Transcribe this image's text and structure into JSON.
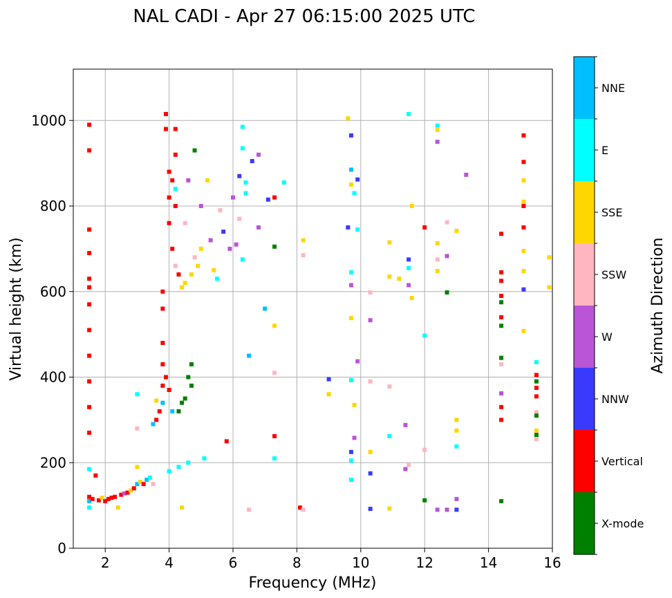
{
  "chart_data": {
    "type": "scatter",
    "title": "NAL CADI - Apr 27 06:15:00 2025 UTC",
    "xlabel": "Frequency (MHz)",
    "ylabel": "Virtual height (km)",
    "xlim": [
      1.0,
      16.0
    ],
    "ylim": [
      0,
      1120
    ],
    "xticks": [
      2,
      4,
      6,
      8,
      10,
      12,
      14,
      16
    ],
    "yticks": [
      0,
      200,
      400,
      600,
      800,
      1000
    ],
    "grid": true,
    "colorbar": {
      "label": "Azimuth Direction",
      "categories": [
        {
          "name": "X-mode",
          "color": "#008000"
        },
        {
          "name": "Vertical",
          "color": "#ff0000"
        },
        {
          "name": "NNW",
          "color": "#3a3aff"
        },
        {
          "name": "W",
          "color": "#b955d6"
        },
        {
          "name": "SSW",
          "color": "#ffb6c1"
        },
        {
          "name": "SSE",
          "color": "#ffd700"
        },
        {
          "name": "E",
          "color": "#00ffff"
        },
        {
          "name": "NNE",
          "color": "#00bfff"
        }
      ]
    },
    "points": [
      {
        "f": 1.5,
        "h": 990,
        "dir": "Vertical"
      },
      {
        "f": 1.5,
        "h": 930,
        "dir": "Vertical"
      },
      {
        "f": 1.5,
        "h": 745,
        "dir": "Vertical"
      },
      {
        "f": 1.5,
        "h": 690,
        "dir": "Vertical"
      },
      {
        "f": 1.5,
        "h": 630,
        "dir": "Vertical"
      },
      {
        "f": 1.5,
        "h": 610,
        "dir": "Vertical"
      },
      {
        "f": 1.5,
        "h": 570,
        "dir": "Vertical"
      },
      {
        "f": 1.5,
        "h": 510,
        "dir": "Vertical"
      },
      {
        "f": 1.5,
        "h": 450,
        "dir": "Vertical"
      },
      {
        "f": 1.5,
        "h": 390,
        "dir": "Vertical"
      },
      {
        "f": 1.5,
        "h": 330,
        "dir": "Vertical"
      },
      {
        "f": 1.5,
        "h": 270,
        "dir": "Vertical"
      },
      {
        "f": 1.5,
        "h": 185,
        "dir": "E"
      },
      {
        "f": 1.5,
        "h": 120,
        "dir": "Vertical"
      },
      {
        "f": 1.5,
        "h": 110,
        "dir": "NNE"
      },
      {
        "f": 1.5,
        "h": 95,
        "dir": "E"
      },
      {
        "f": 1.6,
        "h": 115,
        "dir": "Vertical"
      },
      {
        "f": 1.7,
        "h": 170,
        "dir": "Vertical"
      },
      {
        "f": 1.8,
        "h": 112,
        "dir": "Vertical"
      },
      {
        "f": 1.9,
        "h": 118,
        "dir": "SSE"
      },
      {
        "f": 2.0,
        "h": 110,
        "dir": "Vertical"
      },
      {
        "f": 2.1,
        "h": 115,
        "dir": "Vertical"
      },
      {
        "f": 2.2,
        "h": 118,
        "dir": "Vertical"
      },
      {
        "f": 2.3,
        "h": 120,
        "dir": "Vertical"
      },
      {
        "f": 2.4,
        "h": 95,
        "dir": "SSE"
      },
      {
        "f": 2.5,
        "h": 125,
        "dir": "Vertical"
      },
      {
        "f": 2.6,
        "h": 128,
        "dir": "W"
      },
      {
        "f": 2.7,
        "h": 130,
        "dir": "Vertical"
      },
      {
        "f": 2.8,
        "h": 135,
        "dir": "SSE"
      },
      {
        "f": 2.9,
        "h": 140,
        "dir": "Vertical"
      },
      {
        "f": 3.0,
        "h": 150,
        "dir": "NNE"
      },
      {
        "f": 3.0,
        "h": 190,
        "dir": "SSE"
      },
      {
        "f": 3.0,
        "h": 280,
        "dir": "SSW"
      },
      {
        "f": 3.0,
        "h": 360,
        "dir": "E"
      },
      {
        "f": 3.1,
        "h": 155,
        "dir": "SSE"
      },
      {
        "f": 3.2,
        "h": 150,
        "dir": "Vertical"
      },
      {
        "f": 3.3,
        "h": 160,
        "dir": "NNE"
      },
      {
        "f": 3.4,
        "h": 165,
        "dir": "E"
      },
      {
        "f": 3.5,
        "h": 150,
        "dir": "SSW"
      },
      {
        "f": 3.5,
        "h": 290,
        "dir": "NNE"
      },
      {
        "f": 3.6,
        "h": 300,
        "dir": "Vertical"
      },
      {
        "f": 3.6,
        "h": 345,
        "dir": "SSE"
      },
      {
        "f": 3.7,
        "h": 320,
        "dir": "Vertical"
      },
      {
        "f": 3.8,
        "h": 380,
        "dir": "Vertical"
      },
      {
        "f": 3.8,
        "h": 340,
        "dir": "NNE"
      },
      {
        "f": 3.8,
        "h": 430,
        "dir": "Vertical"
      },
      {
        "f": 3.8,
        "h": 480,
        "dir": "Vertical"
      },
      {
        "f": 3.8,
        "h": 560,
        "dir": "Vertical"
      },
      {
        "f": 3.8,
        "h": 600,
        "dir": "Vertical"
      },
      {
        "f": 3.9,
        "h": 400,
        "dir": "Vertical"
      },
      {
        "f": 3.9,
        "h": 1015,
        "dir": "Vertical"
      },
      {
        "f": 3.9,
        "h": 980,
        "dir": "Vertical"
      },
      {
        "f": 4.0,
        "h": 880,
        "dir": "Vertical"
      },
      {
        "f": 4.0,
        "h": 820,
        "dir": "Vertical"
      },
      {
        "f": 4.0,
        "h": 760,
        "dir": "Vertical"
      },
      {
        "f": 4.0,
        "h": 370,
        "dir": "Vertical"
      },
      {
        "f": 4.0,
        "h": 180,
        "dir": "E"
      },
      {
        "f": 4.1,
        "h": 860,
        "dir": "Vertical"
      },
      {
        "f": 4.1,
        "h": 700,
        "dir": "Vertical"
      },
      {
        "f": 4.1,
        "h": 320,
        "dir": "NNE"
      },
      {
        "f": 4.2,
        "h": 980,
        "dir": "Vertical"
      },
      {
        "f": 4.2,
        "h": 920,
        "dir": "Vertical"
      },
      {
        "f": 4.2,
        "h": 840,
        "dir": "E"
      },
      {
        "f": 4.2,
        "h": 800,
        "dir": "Vertical"
      },
      {
        "f": 4.2,
        "h": 660,
        "dir": "SSW"
      },
      {
        "f": 4.3,
        "h": 640,
        "dir": "Vertical"
      },
      {
        "f": 4.3,
        "h": 320,
        "dir": "X-mode"
      },
      {
        "f": 4.3,
        "h": 190,
        "dir": "E"
      },
      {
        "f": 4.4,
        "h": 610,
        "dir": "SSE"
      },
      {
        "f": 4.4,
        "h": 340,
        "dir": "X-mode"
      },
      {
        "f": 4.4,
        "h": 95,
        "dir": "SSE"
      },
      {
        "f": 4.5,
        "h": 760,
        "dir": "SSW"
      },
      {
        "f": 4.5,
        "h": 620,
        "dir": "SSE"
      },
      {
        "f": 4.5,
        "h": 350,
        "dir": "X-mode"
      },
      {
        "f": 4.6,
        "h": 400,
        "dir": "X-mode"
      },
      {
        "f": 4.6,
        "h": 860,
        "dir": "W"
      },
      {
        "f": 4.6,
        "h": 200,
        "dir": "E"
      },
      {
        "f": 4.7,
        "h": 640,
        "dir": "SSE"
      },
      {
        "f": 4.7,
        "h": 380,
        "dir": "X-mode"
      },
      {
        "f": 4.7,
        "h": 430,
        "dir": "X-mode"
      },
      {
        "f": 4.8,
        "h": 930,
        "dir": "X-mode"
      },
      {
        "f": 4.8,
        "h": 680,
        "dir": "SSW"
      },
      {
        "f": 4.9,
        "h": 660,
        "dir": "SSE"
      },
      {
        "f": 5.0,
        "h": 700,
        "dir": "SSE"
      },
      {
        "f": 5.0,
        "h": 800,
        "dir": "W"
      },
      {
        "f": 5.1,
        "h": 210,
        "dir": "E"
      },
      {
        "f": 5.2,
        "h": 860,
        "dir": "SSE"
      },
      {
        "f": 5.3,
        "h": 720,
        "dir": "W"
      },
      {
        "f": 5.4,
        "h": 650,
        "dir": "SSE"
      },
      {
        "f": 5.5,
        "h": 630,
        "dir": "E"
      },
      {
        "f": 5.6,
        "h": 790,
        "dir": "SSW"
      },
      {
        "f": 5.7,
        "h": 740,
        "dir": "NNW"
      },
      {
        "f": 5.8,
        "h": 250,
        "dir": "Vertical"
      },
      {
        "f": 5.9,
        "h": 700,
        "dir": "W"
      },
      {
        "f": 6.0,
        "h": 820,
        "dir": "W"
      },
      {
        "f": 6.1,
        "h": 710,
        "dir": "W"
      },
      {
        "f": 6.2,
        "h": 770,
        "dir": "SSW"
      },
      {
        "f": 6.2,
        "h": 870,
        "dir": "NNW"
      },
      {
        "f": 6.3,
        "h": 985,
        "dir": "E"
      },
      {
        "f": 6.3,
        "h": 935,
        "dir": "E"
      },
      {
        "f": 6.3,
        "h": 675,
        "dir": "E"
      },
      {
        "f": 6.4,
        "h": 855,
        "dir": "E"
      },
      {
        "f": 6.4,
        "h": 830,
        "dir": "E"
      },
      {
        "f": 6.5,
        "h": 450,
        "dir": "NNE"
      },
      {
        "f": 6.5,
        "h": 90,
        "dir": "SSW"
      },
      {
        "f": 6.6,
        "h": 905,
        "dir": "NNW"
      },
      {
        "f": 6.8,
        "h": 920,
        "dir": "W"
      },
      {
        "f": 6.8,
        "h": 750,
        "dir": "W"
      },
      {
        "f": 7.0,
        "h": 560,
        "dir": "NNE"
      },
      {
        "f": 7.1,
        "h": 815,
        "dir": "NNW"
      },
      {
        "f": 7.3,
        "h": 520,
        "dir": "SSE"
      },
      {
        "f": 7.3,
        "h": 410,
        "dir": "SSW"
      },
      {
        "f": 7.3,
        "h": 820,
        "dir": "Vertical"
      },
      {
        "f": 7.3,
        "h": 705,
        "dir": "X-mode"
      },
      {
        "f": 7.3,
        "h": 262,
        "dir": "Vertical"
      },
      {
        "f": 7.3,
        "h": 210,
        "dir": "E"
      },
      {
        "f": 7.6,
        "h": 855,
        "dir": "E"
      },
      {
        "f": 8.1,
        "h": 95,
        "dir": "Vertical"
      },
      {
        "f": 8.2,
        "h": 720,
        "dir": "SSE"
      },
      {
        "f": 8.2,
        "h": 685,
        "dir": "SSW"
      },
      {
        "f": 8.2,
        "h": 90,
        "dir": "SSW"
      },
      {
        "f": 9.0,
        "h": 395,
        "dir": "NNW"
      },
      {
        "f": 9.0,
        "h": 360,
        "dir": "SSE"
      },
      {
        "f": 9.6,
        "h": 1005,
        "dir": "SSE"
      },
      {
        "f": 9.6,
        "h": 750,
        "dir": "NNW"
      },
      {
        "f": 9.7,
        "h": 965,
        "dir": "NNW"
      },
      {
        "f": 9.7,
        "h": 885,
        "dir": "NNE"
      },
      {
        "f": 9.7,
        "h": 850,
        "dir": "SSE"
      },
      {
        "f": 9.7,
        "h": 645,
        "dir": "E"
      },
      {
        "f": 9.7,
        "h": 615,
        "dir": "W"
      },
      {
        "f": 9.7,
        "h": 538,
        "dir": "SSE"
      },
      {
        "f": 9.7,
        "h": 393,
        "dir": "E"
      },
      {
        "f": 9.7,
        "h": 225,
        "dir": "NNW"
      },
      {
        "f": 9.7,
        "h": 205,
        "dir": "E"
      },
      {
        "f": 9.7,
        "h": 160,
        "dir": "E"
      },
      {
        "f": 9.8,
        "h": 335,
        "dir": "SSE"
      },
      {
        "f": 9.8,
        "h": 258,
        "dir": "W"
      },
      {
        "f": 9.8,
        "h": 830,
        "dir": "E"
      },
      {
        "f": 9.9,
        "h": 862,
        "dir": "NNW"
      },
      {
        "f": 9.9,
        "h": 745,
        "dir": "E"
      },
      {
        "f": 9.9,
        "h": 437,
        "dir": "W"
      },
      {
        "f": 10.3,
        "h": 598,
        "dir": "SSW"
      },
      {
        "f": 10.3,
        "h": 533,
        "dir": "W"
      },
      {
        "f": 10.3,
        "h": 390,
        "dir": "SSW"
      },
      {
        "f": 10.3,
        "h": 225,
        "dir": "SSE"
      },
      {
        "f": 10.3,
        "h": 175,
        "dir": "NNW"
      },
      {
        "f": 10.3,
        "h": 92,
        "dir": "NNW"
      },
      {
        "f": 10.9,
        "h": 715,
        "dir": "SSE"
      },
      {
        "f": 10.9,
        "h": 635,
        "dir": "SSE"
      },
      {
        "f": 10.9,
        "h": 378,
        "dir": "SSW"
      },
      {
        "f": 10.9,
        "h": 262,
        "dir": "E"
      },
      {
        "f": 10.9,
        "h": 93,
        "dir": "SSE"
      },
      {
        "f": 11.2,
        "h": 630,
        "dir": "SSE"
      },
      {
        "f": 11.4,
        "h": 288,
        "dir": "W"
      },
      {
        "f": 11.4,
        "h": 185,
        "dir": "W"
      },
      {
        "f": 11.5,
        "h": 1015,
        "dir": "E"
      },
      {
        "f": 11.5,
        "h": 675,
        "dir": "NNW"
      },
      {
        "f": 11.5,
        "h": 655,
        "dir": "E"
      },
      {
        "f": 11.5,
        "h": 615,
        "dir": "W"
      },
      {
        "f": 11.5,
        "h": 195,
        "dir": "SSW"
      },
      {
        "f": 11.6,
        "h": 800,
        "dir": "SSE"
      },
      {
        "f": 11.6,
        "h": 585,
        "dir": "SSE"
      },
      {
        "f": 12.0,
        "h": 750,
        "dir": "Vertical"
      },
      {
        "f": 12.0,
        "h": 497,
        "dir": "E"
      },
      {
        "f": 12.0,
        "h": 230,
        "dir": "SSW"
      },
      {
        "f": 12.0,
        "h": 112,
        "dir": "X-mode"
      },
      {
        "f": 12.4,
        "h": 988,
        "dir": "E"
      },
      {
        "f": 12.4,
        "h": 978,
        "dir": "SSE"
      },
      {
        "f": 12.4,
        "h": 950,
        "dir": "W"
      },
      {
        "f": 12.4,
        "h": 713,
        "dir": "SSE"
      },
      {
        "f": 12.4,
        "h": 675,
        "dir": "SSW"
      },
      {
        "f": 12.4,
        "h": 648,
        "dir": "SSE"
      },
      {
        "f": 12.4,
        "h": 90,
        "dir": "W"
      },
      {
        "f": 12.7,
        "h": 762,
        "dir": "SSW"
      },
      {
        "f": 12.7,
        "h": 683,
        "dir": "W"
      },
      {
        "f": 12.7,
        "h": 598,
        "dir": "X-mode"
      },
      {
        "f": 12.7,
        "h": 90,
        "dir": "W"
      },
      {
        "f": 13.0,
        "h": 742,
        "dir": "SSE"
      },
      {
        "f": 13.0,
        "h": 300,
        "dir": "SSE"
      },
      {
        "f": 13.0,
        "h": 275,
        "dir": "SSE"
      },
      {
        "f": 13.0,
        "h": 238,
        "dir": "E"
      },
      {
        "f": 13.0,
        "h": 115,
        "dir": "W"
      },
      {
        "f": 13.0,
        "h": 90,
        "dir": "NNW"
      },
      {
        "f": 13.3,
        "h": 873,
        "dir": "W"
      },
      {
        "f": 14.4,
        "h": 735,
        "dir": "Vertical"
      },
      {
        "f": 14.4,
        "h": 645,
        "dir": "Vertical"
      },
      {
        "f": 14.4,
        "h": 625,
        "dir": "Vertical"
      },
      {
        "f": 14.4,
        "h": 590,
        "dir": "Vertical"
      },
      {
        "f": 14.4,
        "h": 575,
        "dir": "X-mode"
      },
      {
        "f": 14.4,
        "h": 540,
        "dir": "Vertical"
      },
      {
        "f": 14.4,
        "h": 520,
        "dir": "X-mode"
      },
      {
        "f": 14.4,
        "h": 445,
        "dir": "X-mode"
      },
      {
        "f": 14.4,
        "h": 430,
        "dir": "SSW"
      },
      {
        "f": 14.4,
        "h": 362,
        "dir": "W"
      },
      {
        "f": 14.4,
        "h": 330,
        "dir": "Vertical"
      },
      {
        "f": 14.4,
        "h": 300,
        "dir": "Vertical"
      },
      {
        "f": 14.4,
        "h": 110,
        "dir": "X-mode"
      },
      {
        "f": 15.1,
        "h": 965,
        "dir": "Vertical"
      },
      {
        "f": 15.1,
        "h": 903,
        "dir": "Vertical"
      },
      {
        "f": 15.1,
        "h": 860,
        "dir": "SSE"
      },
      {
        "f": 15.1,
        "h": 810,
        "dir": "SSE"
      },
      {
        "f": 15.1,
        "h": 800,
        "dir": "Vertical"
      },
      {
        "f": 15.1,
        "h": 750,
        "dir": "Vertical"
      },
      {
        "f": 15.1,
        "h": 695,
        "dir": "SSE"
      },
      {
        "f": 15.1,
        "h": 648,
        "dir": "SSE"
      },
      {
        "f": 15.1,
        "h": 605,
        "dir": "NNW"
      },
      {
        "f": 15.1,
        "h": 508,
        "dir": "SSE"
      },
      {
        "f": 15.5,
        "h": 435,
        "dir": "E"
      },
      {
        "f": 15.5,
        "h": 405,
        "dir": "Vertical"
      },
      {
        "f": 15.5,
        "h": 390,
        "dir": "X-mode"
      },
      {
        "f": 15.5,
        "h": 375,
        "dir": "Vertical"
      },
      {
        "f": 15.5,
        "h": 355,
        "dir": "Vertical"
      },
      {
        "f": 15.5,
        "h": 318,
        "dir": "SSW"
      },
      {
        "f": 15.5,
        "h": 310,
        "dir": "X-mode"
      },
      {
        "f": 15.5,
        "h": 275,
        "dir": "SSE"
      },
      {
        "f": 15.5,
        "h": 265,
        "dir": "X-mode"
      },
      {
        "f": 15.5,
        "h": 255,
        "dir": "SSW"
      },
      {
        "f": 15.9,
        "h": 680,
        "dir": "SSE"
      },
      {
        "f": 15.9,
        "h": 610,
        "dir": "SSE"
      }
    ]
  }
}
